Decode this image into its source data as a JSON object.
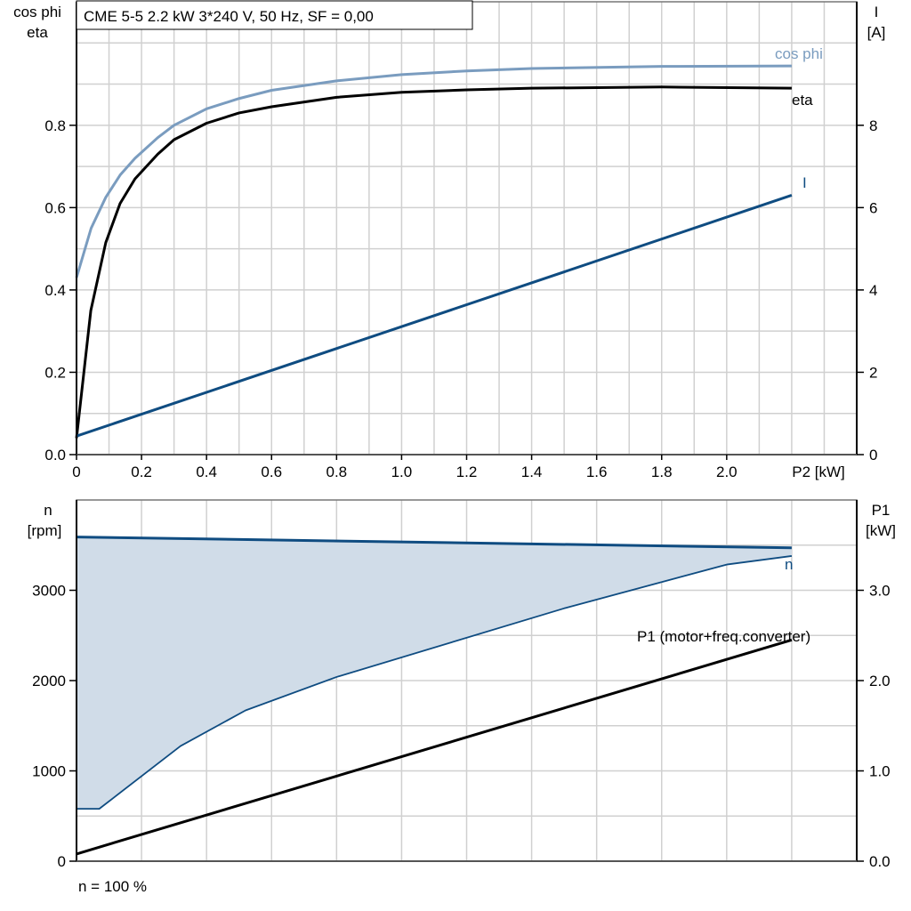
{
  "chart_data": [
    {
      "type": "line",
      "title": "CME 5-5   2.2 kW   3*240 V, 50 Hz, SF = 0,00",
      "xlabel": "P2 [kW]",
      "ylabel_left": [
        "cos phi",
        "eta"
      ],
      "ylabel_right": [
        "I",
        "[A]"
      ],
      "xlim": [
        0,
        2.4
      ],
      "ylim_left": [
        0,
        1.1
      ],
      "ylim_right": [
        0,
        11
      ],
      "x_ticks": [
        "0",
        "0.2",
        "0.4",
        "0.6",
        "0.8",
        "1.0",
        "1.2",
        "1.4",
        "1.6",
        "1.8",
        "2.0"
      ],
      "x_tick_values": [
        0,
        0.2,
        0.4,
        0.6,
        0.8,
        1.0,
        1.2,
        1.4,
        1.6,
        1.8,
        2.0
      ],
      "y_left_ticks": [
        "0.0",
        "0.2",
        "0.4",
        "0.6",
        "0.8"
      ],
      "y_left_tick_values": [
        0,
        0.2,
        0.4,
        0.6,
        0.8
      ],
      "y_right_ticks": [
        "0",
        "2",
        "4",
        "6",
        "8"
      ],
      "y_right_tick_values": [
        0,
        2,
        4,
        6,
        8
      ],
      "grid": true,
      "series": [
        {
          "name": "cos phi",
          "axis": "left",
          "color": "#7a9cbf",
          "x": [
            0,
            0.045,
            0.09,
            0.135,
            0.18,
            0.25,
            0.3,
            0.4,
            0.5,
            0.6,
            0.8,
            1.0,
            1.2,
            1.4,
            1.8,
            2.2
          ],
          "y": [
            0.43,
            0.55,
            0.625,
            0.68,
            0.72,
            0.77,
            0.8,
            0.84,
            0.865,
            0.885,
            0.908,
            0.923,
            0.932,
            0.938,
            0.943,
            0.944
          ]
        },
        {
          "name": "eta",
          "axis": "left",
          "color": "#000000",
          "x": [
            0,
            0.044,
            0.09,
            0.134,
            0.18,
            0.25,
            0.3,
            0.4,
            0.5,
            0.6,
            0.8,
            1.0,
            1.2,
            1.4,
            1.8,
            2.2
          ],
          "y": [
            0.04,
            0.35,
            0.515,
            0.61,
            0.67,
            0.73,
            0.765,
            0.805,
            0.83,
            0.845,
            0.868,
            0.88,
            0.886,
            0.89,
            0.893,
            0.89
          ]
        },
        {
          "name": "I",
          "axis": "right",
          "color": "#0f4c81",
          "x": [
            0,
            2.2
          ],
          "y": [
            0.45,
            6.3
          ]
        }
      ]
    },
    {
      "type": "area",
      "ylabel_left": [
        "n",
        "[rpm]"
      ],
      "ylabel_right": [
        "P1",
        "[kW]"
      ],
      "xlim": [
        0,
        2.4
      ],
      "ylim_left": [
        0,
        4000
      ],
      "ylim_right": [
        0,
        4.0
      ],
      "y_left_ticks": [
        "0",
        "1000",
        "2000",
        "3000"
      ],
      "y_left_tick_values": [
        0,
        1000,
        2000,
        3000
      ],
      "y_right_ticks": [
        "0.0",
        "1.0",
        "2.0",
        "3.0"
      ],
      "y_right_tick_values": [
        0,
        1.0,
        2.0,
        3.0
      ],
      "grid": true,
      "footnote": "n = 100 %",
      "fill_color": "#d0dce8",
      "series": [
        {
          "name": "n",
          "role": "max",
          "axis": "left",
          "color": "#0f4c81",
          "x": [
            0,
            2.2
          ],
          "y": [
            3590,
            3470
          ]
        },
        {
          "role": "min",
          "axis": "left",
          "color": "#0f4c81",
          "x": [
            0,
            0.07,
            0.32,
            0.52,
            0.8,
            1.5,
            2.0,
            2.2
          ],
          "y": [
            580,
            580,
            1275,
            1670,
            2040,
            2800,
            3285,
            3380
          ]
        },
        {
          "name": "P1 (motor+freq.converter)",
          "axis": "right",
          "color": "#000000",
          "x": [
            0,
            2.2
          ],
          "y": [
            0.08,
            2.45
          ]
        }
      ]
    }
  ]
}
